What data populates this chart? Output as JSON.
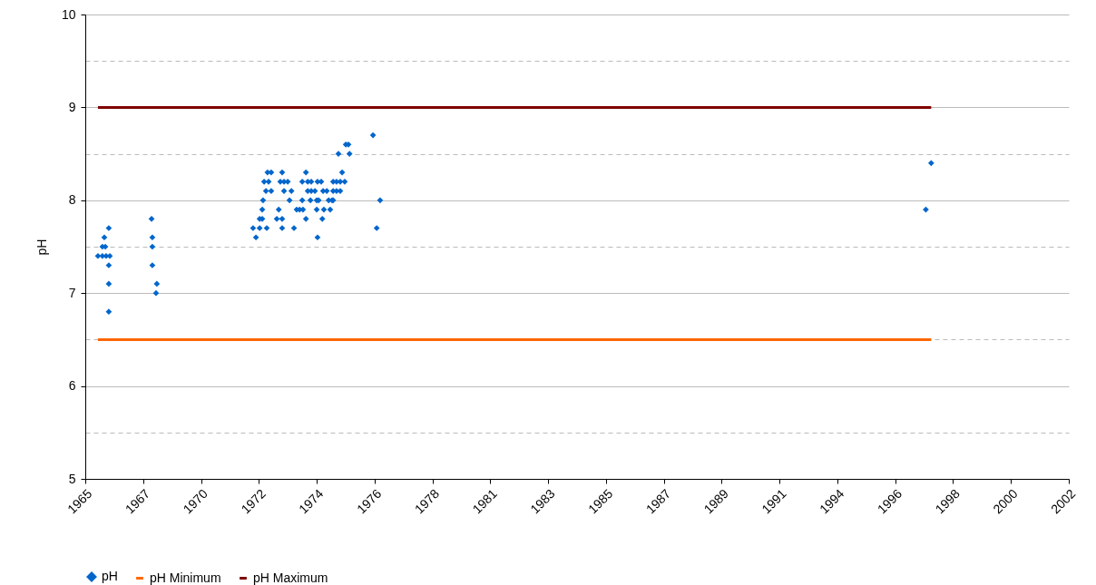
{
  "chart_data": {
    "type": "scatter",
    "ylabel": "pH",
    "legend": "bottom",
    "grid": "y",
    "xlim": [
      "1965-09-10",
      "2002-11-29"
    ],
    "xticks": [
      {
        "value": "1965-09-10",
        "label": "1965"
      },
      {
        "value": "1967-11-18",
        "label": "1967"
      },
      {
        "value": "1970-01-27",
        "label": "1970"
      },
      {
        "value": "1972-04-06",
        "label": "1972"
      },
      {
        "value": "1974-06-14",
        "label": "1974"
      },
      {
        "value": "1976-08-22",
        "label": "1976"
      },
      {
        "value": "1978-10-31",
        "label": "1978"
      },
      {
        "value": "1981-01-08",
        "label": "1981"
      },
      {
        "value": "1983-03-18",
        "label": "1983"
      },
      {
        "value": "1985-05-26",
        "label": "1985"
      },
      {
        "value": "1987-08-03",
        "label": "1987"
      },
      {
        "value": "1989-10-11",
        "label": "1989"
      },
      {
        "value": "1991-12-19",
        "label": "1991"
      },
      {
        "value": "1994-02-26",
        "label": "1994"
      },
      {
        "value": "1996-05-06",
        "label": "1996"
      },
      {
        "value": "1998-07-14",
        "label": "1998"
      },
      {
        "value": "2000-09-21",
        "label": "2000"
      },
      {
        "value": "2002-11-29",
        "label": "2002"
      }
    ],
    "ylim": [
      5,
      10
    ],
    "yticks": [
      5,
      {
        "value": 5.5,
        "label": null
      },
      6,
      {
        "value": 6.5,
        "label": null
      },
      7,
      {
        "value": 7.5,
        "label": null
      },
      8,
      {
        "value": 8.5,
        "label": null
      },
      9,
      {
        "value": 9.5,
        "label": null
      },
      10
    ],
    "series": [
      {
        "name": "pH",
        "marker": "diamond",
        "color": "#0066cc",
        "x": [
          "1966-03-04",
          "1966-05-05",
          "1966-05-05",
          "1966-05-31",
          "1966-06-14",
          "1966-06-25",
          "1966-08-01",
          "1966-08-01",
          "1966-08-01",
          "1966-08-01",
          "1966-08-15",
          "1968-03-14",
          "1968-03-25",
          "1968-03-25",
          "1968-03-25",
          "1968-05-15",
          "1968-05-26",
          "1972-02-25",
          "1974-06-25",
          "1972-01-16",
          "1972-04-16",
          "1972-07-23",
          "1973-02-21",
          "1973-08-04",
          "1976-09-20",
          "1972-04-16",
          "1972-05-22",
          "1972-12-09",
          "1973-02-21",
          "1974-01-16",
          "1974-08-30",
          "1972-05-22",
          "1973-01-05",
          "1973-09-10",
          "1973-10-20",
          "1973-12-06",
          "1974-06-14",
          "1974-09-21",
          "1974-12-17",
          "1972-06-02",
          "1973-06-03",
          "1973-11-26",
          "1974-03-19",
          "1974-06-14",
          "1974-07-10",
          "1974-11-26",
          "1975-01-12",
          "1975-01-27",
          "1976-11-06",
          "1972-07-12",
          "1972-09-23",
          "1973-03-19",
          "1973-06-29",
          "1974-02-10",
          "1974-03-30",
          "1974-05-20",
          "1974-09-10",
          "1974-10-31",
          "1975-01-27",
          "1975-03-15",
          "1975-05-05",
          "1972-06-17",
          "1972-08-18",
          "1973-01-27",
          "1973-03-19",
          "1973-05-09",
          "1973-11-26",
          "1974-02-10",
          "1974-03-30",
          "1974-06-25",
          "1974-08-15",
          "1975-01-27",
          "1975-03-15",
          "1975-05-05",
          "1975-07-06",
          "1972-08-03",
          "1972-09-23",
          "1973-02-21",
          "1974-01-16",
          "1975-05-31",
          "1975-04-10",
          "1975-09-10",
          "1975-07-21",
          "1975-08-26",
          "1976-07-31",
          "1997-07-02",
          "1997-09-14"
        ],
        "values": [
          7.4,
          7.4,
          7.5,
          7.6,
          7.5,
          7.4,
          7.3,
          7.1,
          6.8,
          7.7,
          7.4,
          7.8,
          7.6,
          7.5,
          7.3,
          7.0,
          7.1,
          7.6,
          7.6,
          7.7,
          7.7,
          7.7,
          7.7,
          7.7,
          7.7,
          7.8,
          7.8,
          7.8,
          7.8,
          7.8,
          7.8,
          7.9,
          7.9,
          7.9,
          7.9,
          7.9,
          7.9,
          7.9,
          7.9,
          8.0,
          8.0,
          8.0,
          8.0,
          8.0,
          8.0,
          8.0,
          8.0,
          8.0,
          8.0,
          8.1,
          8.1,
          8.1,
          8.1,
          8.1,
          8.1,
          8.1,
          8.1,
          8.1,
          8.1,
          8.1,
          8.1,
          8.2,
          8.2,
          8.2,
          8.2,
          8.2,
          8.2,
          8.2,
          8.2,
          8.2,
          8.2,
          8.2,
          8.2,
          8.2,
          8.2,
          8.3,
          8.3,
          8.3,
          8.3,
          8.3,
          8.5,
          8.5,
          8.6,
          8.6,
          8.7,
          7.9,
          8.4
        ]
      },
      {
        "name": "pH Minimum",
        "type": "line",
        "marker": "none",
        "line_style": "solid",
        "color": "#ff6600",
        "x": [
          "1966-03-04",
          "1997-09-14"
        ],
        "values": [
          6.5,
          6.5
        ]
      },
      {
        "name": "pH Maximum",
        "type": "line",
        "marker": "none",
        "line_style": "solid",
        "color": "#800000",
        "x": [
          "1966-03-04",
          "1997-09-14"
        ],
        "values": [
          9,
          9
        ]
      }
    ]
  }
}
